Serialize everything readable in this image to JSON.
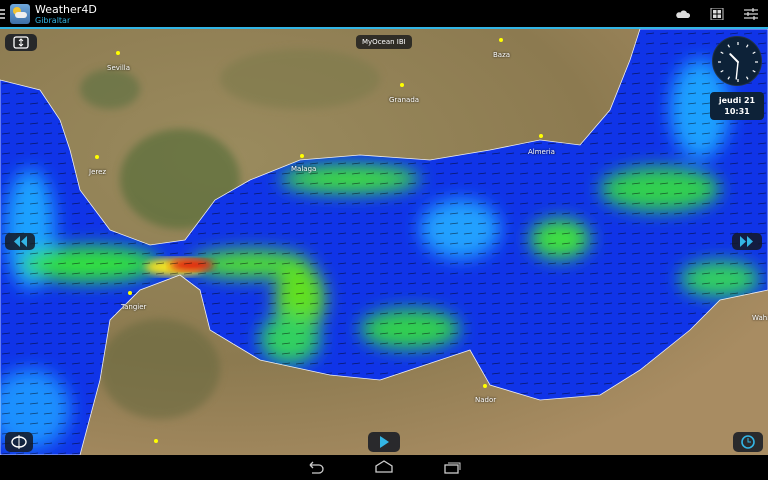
{
  "app": {
    "title": "Weather4D",
    "subtitle": "Gibraltar"
  },
  "toolbar": {
    "icons": [
      "cloud-icon",
      "grid-icon",
      "settings-sliders-icon"
    ]
  },
  "map": {
    "source_label": "MyOcean IBI",
    "clock": {
      "hour": 10,
      "minute": 31
    },
    "date_label": "jeudi 21",
    "time_label": "10:31",
    "cities": [
      {
        "name": "Sevilla"
      },
      {
        "name": "Baza"
      },
      {
        "name": "Granada"
      },
      {
        "name": "Jerez"
      },
      {
        "name": "Malaga"
      },
      {
        "name": "Almeria"
      },
      {
        "name": "Tangier"
      },
      {
        "name": "Nador"
      },
      {
        "name": "Wahra"
      }
    ],
    "colors": {
      "land": "#a08a5c",
      "sea_low": "#1030e0",
      "sea_mid": "#20e040",
      "sea_high": "#e02010",
      "accent": "#33b5e5"
    }
  },
  "nav": {
    "icons": [
      "back-icon",
      "home-icon",
      "recents-icon"
    ]
  }
}
